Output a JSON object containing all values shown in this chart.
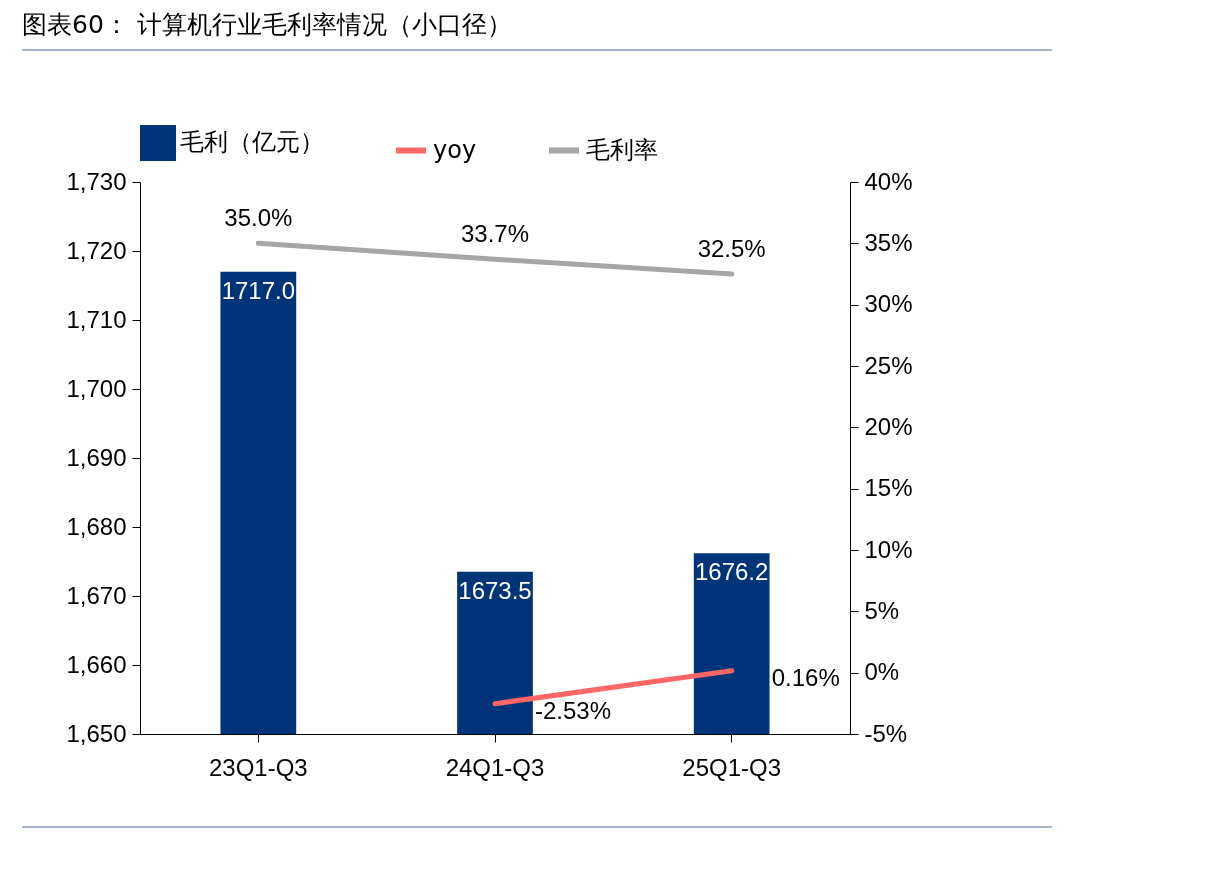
{
  "chart_data": {
    "type": "bar",
    "title": "图表60： 计算机行业毛利率情况（小口径）",
    "categories": [
      "23Q1-Q3",
      "24Q1-Q3",
      "25Q1-Q3"
    ],
    "series": [
      {
        "name": "毛利（亿元）",
        "color": "#003478",
        "values": [
          1717.0,
          1673.5,
          1676.2
        ],
        "value_labels": [
          "1717.0",
          "1673.5",
          "1676.2"
        ]
      },
      {
        "name": "yoy",
        "type": "line",
        "axis": "y2",
        "color": "#ff6666",
        "values": [
          null,
          -2.53,
          0.16
        ],
        "value_labels": [
          null,
          "-2.53%",
          "0.16%"
        ]
      },
      {
        "name": "毛利率",
        "type": "line",
        "axis": "y2",
        "color": "#a6a6a6",
        "values": [
          35.0,
          33.7,
          32.5
        ],
        "value_labels": [
          "35.0%",
          "33.7%",
          "32.5%"
        ]
      }
    ],
    "ylim": [
      1650,
      1730
    ],
    "yticks": [
      {
        "value": 1650,
        "label": "1,650"
      },
      {
        "value": 1660,
        "label": "1,660"
      },
      {
        "value": 1670,
        "label": "1,670"
      },
      {
        "value": 1680,
        "label": "1,680"
      },
      {
        "value": 1690,
        "label": "1,690"
      },
      {
        "value": 1700,
        "label": "1,700"
      },
      {
        "value": 1710,
        "label": "1,710"
      },
      {
        "value": 1720,
        "label": "1,720"
      },
      {
        "value": 1730,
        "label": "1,730"
      }
    ],
    "y2lim": [
      -5,
      40
    ],
    "y2ticks": [
      {
        "value": -5,
        "label": "-5%"
      },
      {
        "value": 0,
        "label": "0%"
      },
      {
        "value": 5,
        "label": "5%"
      },
      {
        "value": 10,
        "label": "10%"
      },
      {
        "value": 15,
        "label": "15%"
      },
      {
        "value": 20,
        "label": "20%"
      },
      {
        "value": 25,
        "label": "25%"
      },
      {
        "value": 30,
        "label": "30%"
      },
      {
        "value": 35,
        "label": "35%"
      },
      {
        "value": 40,
        "label": "40%"
      }
    ],
    "legend": "top"
  }
}
